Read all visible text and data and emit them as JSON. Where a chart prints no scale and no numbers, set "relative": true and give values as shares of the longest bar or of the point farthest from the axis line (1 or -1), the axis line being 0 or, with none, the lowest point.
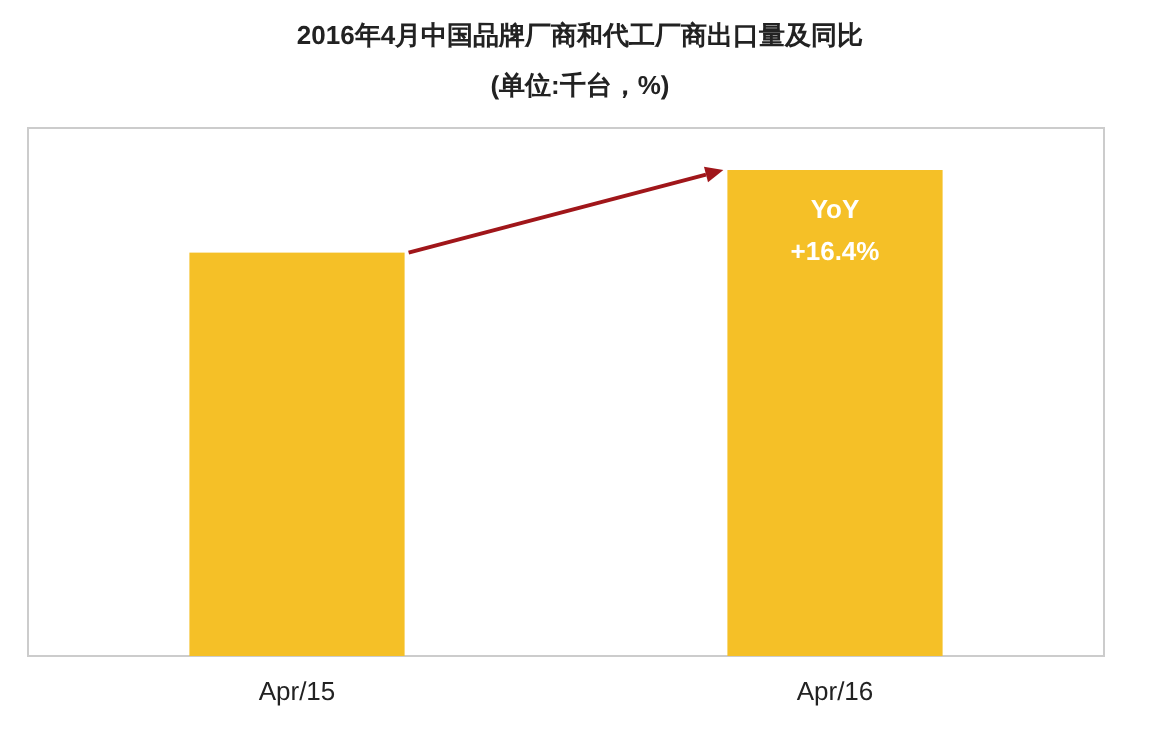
{
  "chart_data": {
    "type": "bar",
    "title": "2016年4月中国品牌厂商和代工厂商出口量及同比",
    "subtitle": "(单位:千台，%)",
    "categories": [
      "Apr/15",
      "Apr/16"
    ],
    "values": [
      0.83,
      1
    ],
    "color": "#f5c027",
    "relative": true,
    "annotations": [
      {
        "text": "YoY\n+16.4%",
        "x": "Apr/16",
        "y": 1
      }
    ]
  }
}
